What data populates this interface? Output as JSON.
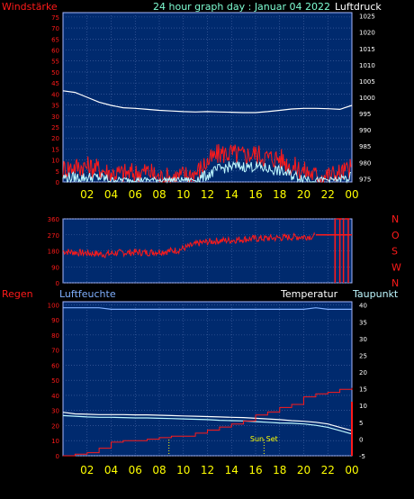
{
  "header": {
    "left_label": "Windstärke",
    "title": "24 hour graph day : Januar 04 2022",
    "right_label": "Luftdruck"
  },
  "colors": {
    "background": "#000000",
    "plot_bg": "#002a6e",
    "grid": "#4a6aa8",
    "frame": "#a8b8ff",
    "red": "#ff1a1a",
    "white": "#ffffff",
    "cyan": "#bff8ff",
    "yellow": "#ffff00",
    "light_blue": "#80b0ff",
    "title_cyan": "#7fffd4"
  },
  "x_ticks": [
    "02",
    "04",
    "06",
    "08",
    "10",
    "12",
    "14",
    "16",
    "18",
    "20",
    "22",
    "00"
  ],
  "chart_data": [
    {
      "type": "line",
      "name": "wind-pressure",
      "x": [
        0,
        1,
        2,
        3,
        4,
        5,
        6,
        7,
        8,
        9,
        10,
        11,
        12,
        13,
        14,
        15,
        16,
        17,
        18,
        19,
        20,
        21,
        22,
        23,
        24
      ],
      "y_left_ticks": [
        0,
        5,
        10,
        15,
        20,
        25,
        30,
        35,
        40,
        45,
        50,
        55,
        60,
        65,
        70,
        75
      ],
      "y_left_range": [
        0,
        77
      ],
      "y_right_ticks": [
        975,
        980,
        985,
        990,
        995,
        1000,
        1005,
        1010,
        1015,
        1020,
        1025
      ],
      "y_right_range": [
        974,
        1026
      ],
      "series": [
        {
          "color": "white",
          "axis": "right",
          "values": [
            1002,
            1001.5,
            1000,
            998.5,
            997.5,
            996.8,
            996.6,
            996.3,
            996,
            995.8,
            995.6,
            995.5,
            995.6,
            995.5,
            995.4,
            995.3,
            995.3,
            995.6,
            996,
            996.4,
            996.6,
            996.6,
            996.5,
            996.3,
            997.5
          ]
        },
        {
          "color": "red",
          "axis": "left",
          "values": [
            6,
            7,
            7,
            6,
            4,
            4,
            4,
            5,
            2,
            2,
            3,
            4,
            9,
            13,
            13,
            12,
            13,
            11,
            11,
            7,
            5,
            3,
            3,
            4,
            6
          ]
        },
        {
          "color": "cyan",
          "axis": "left",
          "values": [
            2,
            2,
            2,
            2,
            1,
            1,
            1,
            1,
            1,
            1,
            1,
            1,
            3,
            6,
            7,
            7,
            7,
            6,
            5,
            3,
            2,
            1,
            1,
            1,
            2
          ]
        }
      ]
    },
    {
      "type": "scatter",
      "name": "wind-direction",
      "y_ticks": [
        0,
        90,
        180,
        270,
        360
      ],
      "y_range": [
        0,
        360
      ],
      "right_labels": [
        "N",
        "W",
        "S",
        "O",
        "N"
      ],
      "values": [
        178,
        172,
        168,
        165,
        160,
        168,
        170,
        172,
        170,
        175,
        178,
        185,
        205,
        225,
        232,
        238,
        240,
        245,
        248,
        250,
        252,
        255,
        258,
        260,
        262
      ],
      "extra_lines": [
        {
          "color": "red",
          "x": [
            21,
            24
          ],
          "y": [
            270,
            270
          ]
        },
        {
          "color": "red",
          "x": [
            22.7,
            23.2
          ],
          "y": [
            360,
            360
          ]
        },
        {
          "color": "red",
          "x": [
            23.4,
            23.8
          ],
          "y": [
            360,
            360
          ]
        }
      ]
    },
    {
      "type": "line",
      "name": "rain-temp",
      "labels": {
        "rain": "Regen",
        "humidity": "Luftfeuchte",
        "temperature": "Temperatur",
        "dewpoint": "Taupunkt",
        "sunset": "Sun Set"
      },
      "y_left_ticks": [
        0,
        10,
        20,
        30,
        40,
        50,
        60,
        70,
        80,
        90,
        100
      ],
      "y_left_range": [
        0,
        102
      ],
      "y_right_ticks": [
        -5,
        0,
        5,
        10,
        15,
        20,
        25,
        30,
        35,
        40
      ],
      "y_right_range": [
        -5,
        41
      ],
      "x": [
        0,
        1,
        2,
        3,
        4,
        5,
        6,
        7,
        8,
        9,
        10,
        11,
        12,
        13,
        14,
        15,
        16,
        17,
        18,
        19,
        20,
        21,
        22,
        23,
        24
      ],
      "series": [
        {
          "name": "humidity",
          "color": "light_blue",
          "axis": "left",
          "values": [
            98,
            98,
            98,
            98,
            97,
            97,
            97,
            97,
            97,
            97,
            97,
            97,
            97,
            97,
            97,
            97,
            97,
            97,
            97,
            97,
            97,
            98,
            97,
            97,
            97
          ]
        },
        {
          "name": "temperature",
          "color": "white",
          "axis": "right",
          "values": [
            8,
            7.5,
            7.4,
            7.3,
            7.3,
            7.3,
            7.2,
            7.2,
            7.1,
            7,
            6.9,
            6.8,
            6.7,
            6.6,
            6.5,
            6.4,
            6.2,
            6,
            5.8,
            5.5,
            5.3,
            5,
            4.5,
            3.5,
            2.5
          ]
        },
        {
          "name": "dewpoint",
          "color": "cyan",
          "axis": "right",
          "values": [
            7,
            6.8,
            6.6,
            6.5,
            6.5,
            6.4,
            6.3,
            6.3,
            6.2,
            6.1,
            6,
            5.9,
            5.8,
            5.6,
            5.5,
            5.4,
            5.2,
            5,
            4.8,
            4.7,
            4.5,
            4.1,
            3.5,
            2.5,
            1.5
          ]
        },
        {
          "name": "rain",
          "color": "red",
          "axis": "left",
          "values": [
            0,
            1,
            2,
            5,
            9,
            10,
            10,
            11,
            12,
            13,
            13,
            15,
            17,
            19,
            21,
            23,
            27,
            29,
            32,
            34,
            39,
            41,
            42,
            44,
            45
          ]
        }
      ],
      "markers": [
        {
          "x": 8.8,
          "color": "yellow"
        },
        {
          "x": 16.7,
          "color": "yellow"
        }
      ]
    }
  ]
}
